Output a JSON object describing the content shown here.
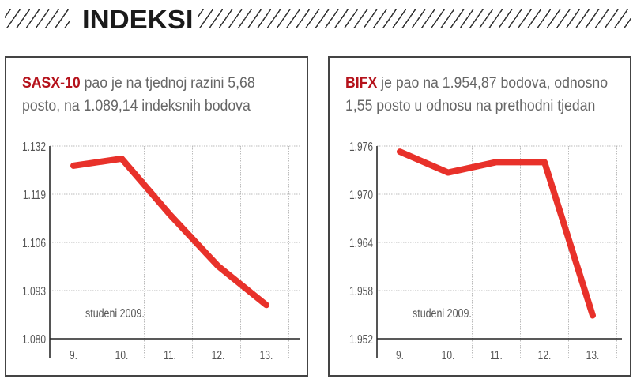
{
  "header": {
    "title": "INDEKSI"
  },
  "chart_data": [
    {
      "type": "line",
      "title_bold": "SASX-10",
      "title_rest": " pao je na tjednoj razini 5,68",
      "title_line2": "posto, na 1.089,14 indeksnih bodova",
      "annotation": "studeni 2009.",
      "categories": [
        "9.",
        "10.",
        "11.",
        "12.",
        "13."
      ],
      "values": [
        1.1267,
        1.1286,
        1.1135,
        1.0996,
        1.0891
      ],
      "yticks": [
        1.132,
        1.119,
        1.106,
        1.093,
        1.08
      ],
      "ytick_labels": [
        "1.132",
        "1.119",
        "1.106",
        "1.093",
        "1.080"
      ],
      "ylim": [
        1.08,
        1.132
      ],
      "grid": true,
      "color": "#e8312a"
    },
    {
      "type": "line",
      "title_bold": "BIFX",
      "title_rest": " je pao na 1.954,87 bodova, odnosno",
      "title_line2": "1,55 posto u odnosu na prethodni tjedan",
      "annotation": "studeni 2009.",
      "categories": [
        "9.",
        "10.",
        "11.",
        "12.",
        "13."
      ],
      "values": [
        1.9753,
        1.9727,
        1.974,
        1.974,
        1.9549
      ],
      "yticks": [
        1.976,
        1.97,
        1.964,
        1.958,
        1.952
      ],
      "ytick_labels": [
        "1.976",
        "1.970",
        "1.964",
        "1.958",
        "1.952"
      ],
      "ylim": [
        1.952,
        1.976
      ],
      "grid": true,
      "color": "#e8312a"
    }
  ]
}
